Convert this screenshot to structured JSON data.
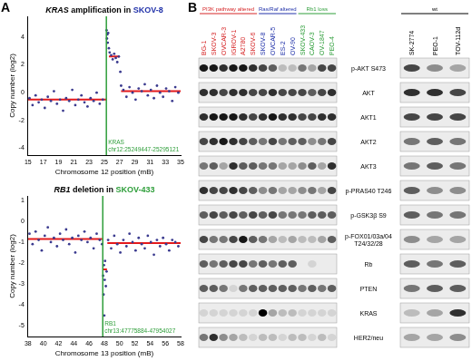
{
  "chart_data": [
    {
      "type": "scatter",
      "panel": "A",
      "title": [
        {
          "text": "KRAS",
          "style": "italic"
        },
        {
          "text": " amplification in "
        },
        {
          "text": "SKOV-8",
          "color": "#2233aa"
        }
      ],
      "xlabel": "Chromosome 12 position (mB)",
      "ylabel": "Copy number (log2)",
      "x": [
        15.2,
        15.6,
        16.0,
        16.4,
        16.8,
        17.2,
        17.6,
        18.0,
        18.4,
        18.8,
        19.2,
        19.6,
        20.0,
        20.4,
        20.8,
        21.2,
        21.6,
        22.0,
        22.4,
        22.8,
        23.2,
        23.6,
        24.0,
        24.4,
        24.8,
        25.3,
        25.35,
        25.4,
        25.45,
        25.5,
        25.6,
        25.7,
        25.9,
        26.1,
        26.3,
        26.5,
        26.7,
        26.9,
        27.1,
        27.2,
        27.5,
        27.9,
        28.3,
        28.7,
        29.1,
        29.5,
        29.9,
        30.3,
        30.7,
        31.1,
        31.5,
        31.9,
        32.3,
        32.7,
        33.1,
        33.5,
        33.9,
        34.3,
        34.7
      ],
      "values": [
        -0.4,
        -0.9,
        -0.2,
        -0.7,
        -0.5,
        -1.1,
        -0.3,
        -0.6,
        0.1,
        -0.8,
        -0.5,
        -1.3,
        -0.4,
        -0.6,
        0.2,
        -0.9,
        -0.5,
        -0.2,
        -0.7,
        -1.0,
        -0.4,
        -0.6,
        0.0,
        -0.8,
        -0.5,
        4.5,
        3.9,
        4.2,
        3.6,
        4.3,
        3.2,
        2.9,
        2.7,
        2.4,
        2.8,
        2.5,
        2.2,
        2.6,
        1.5,
        0.5,
        0.2,
        -0.3,
        0.4,
        0.0,
        -0.5,
        0.3,
        0.1,
        0.6,
        -0.2,
        0.2,
        -0.4,
        0.5,
        0.0,
        -0.3,
        0.3,
        0.1,
        -0.6,
        0.4,
        0.0
      ],
      "color": "#3b3b8f",
      "segments": {
        "color": "#e41a1c",
        "items": [
          {
            "x": [
              15,
              25.25
            ],
            "y": -0.5
          },
          {
            "x": [
              25.3,
              25.5
            ],
            "y": 4.2
          },
          {
            "x": [
              25.6,
              27.0
            ],
            "y": 2.6
          },
          {
            "x": [
              27.2,
              35
            ],
            "y": 0.1
          }
        ]
      },
      "annotations": [
        {
          "x": 25.27,
          "label": [
            "KRAS",
            "chr12:25249447-25295121"
          ],
          "color": "#2e9e3a"
        }
      ],
      "xlim": [
        15,
        35
      ],
      "xticks": [
        15,
        17,
        19,
        21,
        23,
        25,
        27,
        29,
        31,
        33,
        35
      ],
      "ylim": [
        -4.5,
        5.5
      ],
      "yticks": [
        -4,
        -2,
        0,
        2,
        4
      ],
      "grid": false
    },
    {
      "type": "scatter",
      "title": [
        {
          "text": "RB1",
          "style": "italic"
        },
        {
          "text": " deletion in "
        },
        {
          "text": "SKOV-433",
          "color": "#2e9e3a"
        }
      ],
      "xlabel": "Chromosome 13 position (mB)",
      "ylabel": "Copy number (log2)",
      "x": [
        38.2,
        38.6,
        39.0,
        39.4,
        39.8,
        40.2,
        40.6,
        41.0,
        41.4,
        41.8,
        42.2,
        42.6,
        43.0,
        43.4,
        43.8,
        44.2,
        44.6,
        45.0,
        45.4,
        45.8,
        46.2,
        46.6,
        47.0,
        47.4,
        47.7,
        47.85,
        47.9,
        47.95,
        48.0,
        48.05,
        48.1,
        48.2,
        48.3,
        48.5,
        48.9,
        49.3,
        49.7,
        50.1,
        50.5,
        50.9,
        51.3,
        51.7,
        52.1,
        52.5,
        52.9,
        53.3,
        53.7,
        54.1,
        54.5,
        54.9,
        55.3,
        55.7,
        56.1,
        56.5,
        56.9,
        57.3,
        57.7
      ],
      "values": [
        -0.6,
        -1.1,
        -0.5,
        -0.9,
        -1.4,
        -0.7,
        -0.3,
        -1.0,
        -0.8,
        -1.2,
        -0.6,
        -0.9,
        -0.4,
        -1.1,
        -0.8,
        -1.5,
        -0.7,
        -0.9,
        -0.5,
        -1.0,
        -0.8,
        -1.3,
        -0.6,
        -0.9,
        -1.1,
        -2.6,
        -3.5,
        -2.1,
        -4.5,
        -2.8,
        -1.9,
        -3.1,
        -2.4,
        -0.9,
        -1.3,
        -0.7,
        -1.1,
        -1.5,
        -0.9,
        -1.2,
        -0.6,
        -1.0,
        -1.4,
        -0.8,
        -1.1,
        -1.3,
        -0.7,
        -1.0,
        -1.6,
        -0.9,
        -1.2,
        -0.8,
        -1.1,
        -1.4,
        -0.9,
        -1.0,
        -1.2
      ],
      "color": "#3b3b8f",
      "segments": {
        "color": "#e41a1c",
        "items": [
          {
            "x": [
              38,
              47.75
            ],
            "y": -0.85
          },
          {
            "x": [
              47.8,
              48.35
            ],
            "y": -2.3
          },
          {
            "x": [
              48.4,
              58
            ],
            "y": -1.05
          }
        ]
      },
      "annotations": [
        {
          "x": 47.8,
          "label": [
            "RB1",
            "chr13:47775884-47954027"
          ],
          "color": "#2e9e3a"
        }
      ],
      "xlim": [
        38,
        58
      ],
      "xticks": [
        38,
        40,
        42,
        44,
        46,
        48,
        50,
        52,
        54,
        56,
        58
      ],
      "ylim": [
        -5.5,
        1.2
      ],
      "yticks": [
        -5,
        -4,
        -3,
        -2,
        -1,
        0,
        1
      ],
      "grid": false
    }
  ],
  "blot": {
    "panel": "B",
    "groups": [
      {
        "name": "PI3K pathway altered",
        "color": "#d62728",
        "lanes": [
          "BG-1",
          "SKOV-3",
          "OVCAR-3",
          "IGROV-1",
          "A2780",
          "SKOV-6"
        ]
      },
      {
        "name": "Ras/Raf altered",
        "color": "#2233aa",
        "lanes": [
          "SKOV-8",
          "OVCAR-5",
          "ES-2",
          "OV-90"
        ]
      },
      {
        "name": "Rb1 loss",
        "color": "#2e9e3a",
        "lanes": [
          "SKOV-433",
          "CAOV-3",
          "OV-1847",
          "PEO-4"
        ]
      },
      {
        "name": "wt",
        "color": "#000000",
        "lanes": [
          "SK-2774",
          "PEO-1",
          "TOV-112d"
        ]
      }
    ],
    "rows": [
      {
        "label": "p-AKT S473",
        "intensity": [
          0.9,
          0.9,
          0.8,
          0.9,
          0.9,
          0.8,
          0.7,
          0.6,
          0.2,
          0.2,
          0.5,
          0.3,
          0.7,
          0.7,
          0.7,
          0.4,
          0.3
        ]
      },
      {
        "label": "AKT",
        "intensity": [
          0.8,
          0.8,
          0.7,
          0.8,
          0.8,
          0.7,
          0.7,
          0.8,
          0.7,
          0.7,
          0.7,
          0.6,
          0.7,
          0.8,
          0.8,
          0.8,
          0.7
        ]
      },
      {
        "label": "AKT1",
        "intensity": [
          0.8,
          0.9,
          0.9,
          0.9,
          0.8,
          0.7,
          0.8,
          0.9,
          0.8,
          0.8,
          0.7,
          0.7,
          0.8,
          0.8,
          0.7,
          0.7,
          0.7
        ]
      },
      {
        "label": "AKT2",
        "intensity": [
          0.7,
          0.8,
          0.9,
          0.8,
          0.7,
          0.6,
          0.5,
          0.7,
          0.5,
          0.6,
          0.6,
          0.4,
          0.5,
          0.7,
          0.5,
          0.6,
          0.5
        ]
      },
      {
        "label": "AKT3",
        "intensity": [
          0.5,
          0.6,
          0.3,
          0.8,
          0.6,
          0.6,
          0.5,
          0.5,
          0.3,
          0.3,
          0.4,
          0.6,
          0.3,
          0.8,
          0.5,
          0.6,
          0.5
        ]
      },
      {
        "label": "p-PRAS40 T246",
        "intensity": [
          0.8,
          0.7,
          0.7,
          0.8,
          0.7,
          0.6,
          0.4,
          0.5,
          0.3,
          0.3,
          0.4,
          0.5,
          0.3,
          0.7,
          0.6,
          0.4,
          0.4
        ]
      },
      {
        "label": "p-GSK3β S9",
        "intensity": [
          0.6,
          0.7,
          0.6,
          0.7,
          0.6,
          0.7,
          0.6,
          0.7,
          0.5,
          0.5,
          0.5,
          0.6,
          0.6,
          0.6,
          0.6,
          0.5,
          0.5
        ]
      },
      {
        "label": "p-FOX01/03a/04 T24/32/28",
        "intensity": [
          0.7,
          0.5,
          0.5,
          0.7,
          0.9,
          0.6,
          0.5,
          0.3,
          0.2,
          0.3,
          0.2,
          0.2,
          0.3,
          0.6,
          0.4,
          0.3,
          0.3
        ]
      },
      {
        "label": "Rb",
        "intensity": [
          0.6,
          0.5,
          0.6,
          0.7,
          0.7,
          0.5,
          0.6,
          0.5,
          0.6,
          0.6,
          0.0,
          0.1,
          0.0,
          0.0,
          0.6,
          0.5,
          0.6
        ]
      },
      {
        "label": "PTEN",
        "intensity": [
          0.6,
          0.6,
          0.5,
          0.1,
          0.5,
          0.6,
          0.6,
          0.6,
          0.6,
          0.6,
          0.5,
          0.6,
          0.5,
          0.6,
          0.5,
          0.6,
          0.6
        ]
      },
      {
        "label": "KRAS",
        "intensity": [
          0.1,
          0.1,
          0.1,
          0.1,
          0.1,
          0.1,
          1.0,
          0.3,
          0.2,
          0.2,
          0.1,
          0.1,
          0.1,
          0.1,
          0.2,
          0.3,
          0.8
        ]
      },
      {
        "label": "HER2/neu",
        "intensity": [
          0.5,
          0.8,
          0.4,
          0.3,
          0.2,
          0.1,
          0.2,
          0.2,
          0.1,
          0.2,
          0.2,
          0.1,
          0.2,
          0.1,
          0.3,
          0.3,
          0.4
        ]
      }
    ]
  }
}
